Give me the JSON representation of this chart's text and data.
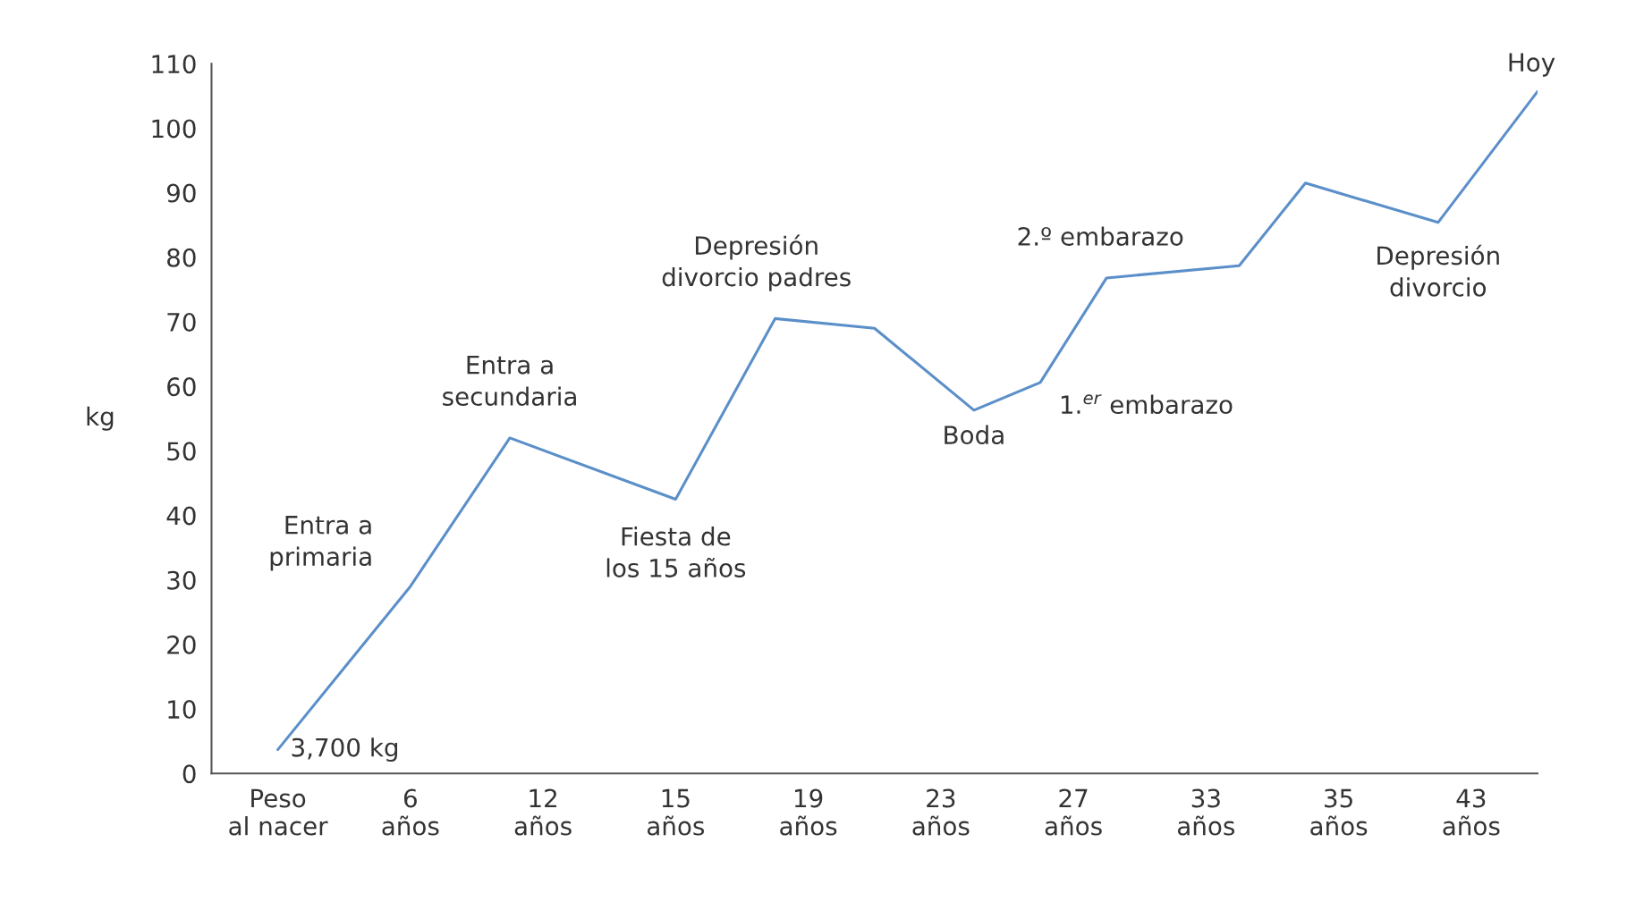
{
  "chart_data": {
    "type": "line",
    "ylabel": "kg",
    "categories": [
      null,
      null,
      "Peso\nal nacer",
      null,
      null,
      null,
      "6\naños",
      null,
      null,
      null,
      "12\naños",
      null,
      null,
      null,
      "15\naños",
      null,
      null,
      null,
      "19\naños",
      null,
      null,
      null,
      "23\naños",
      null,
      null,
      null,
      "27\naños",
      null,
      null,
      null,
      "33\naños",
      null,
      null,
      null,
      "35\naños",
      null,
      null,
      null,
      "43\naños",
      null,
      null
    ],
    "series": [
      {
        "color": "#5b8fc9",
        "values": [
          null,
          null,
          3.7,
          null,
          null,
          null,
          29,
          null,
          null,
          52,
          null,
          null,
          null,
          null,
          42.5,
          null,
          null,
          70.5,
          null,
          null,
          69,
          null,
          null,
          56.3,
          null,
          60.6,
          null,
          76.8,
          null,
          null,
          null,
          78.7,
          null,
          91.5,
          null,
          null,
          null,
          85.4,
          null,
          null,
          105.7
        ]
      }
    ],
    "ylim": [
      0,
      110
    ],
    "yticks": [
      0,
      10,
      20,
      30,
      40,
      50,
      60,
      70,
      80,
      90,
      100,
      110
    ],
    "grid": false,
    "marker": "none",
    "line_style": "solid",
    "annotations": [
      "3,700 kg",
      "Entra a\nprimaria",
      "Entra a\nsecundaria",
      "Fiesta de\nlos 15 años",
      "Depresión\ndivorcio padres",
      "Boda",
      "1.$^{er}$ embarazo",
      "2.º embarazo",
      "Depresión\ndivorcio",
      "Hoy"
    ]
  }
}
